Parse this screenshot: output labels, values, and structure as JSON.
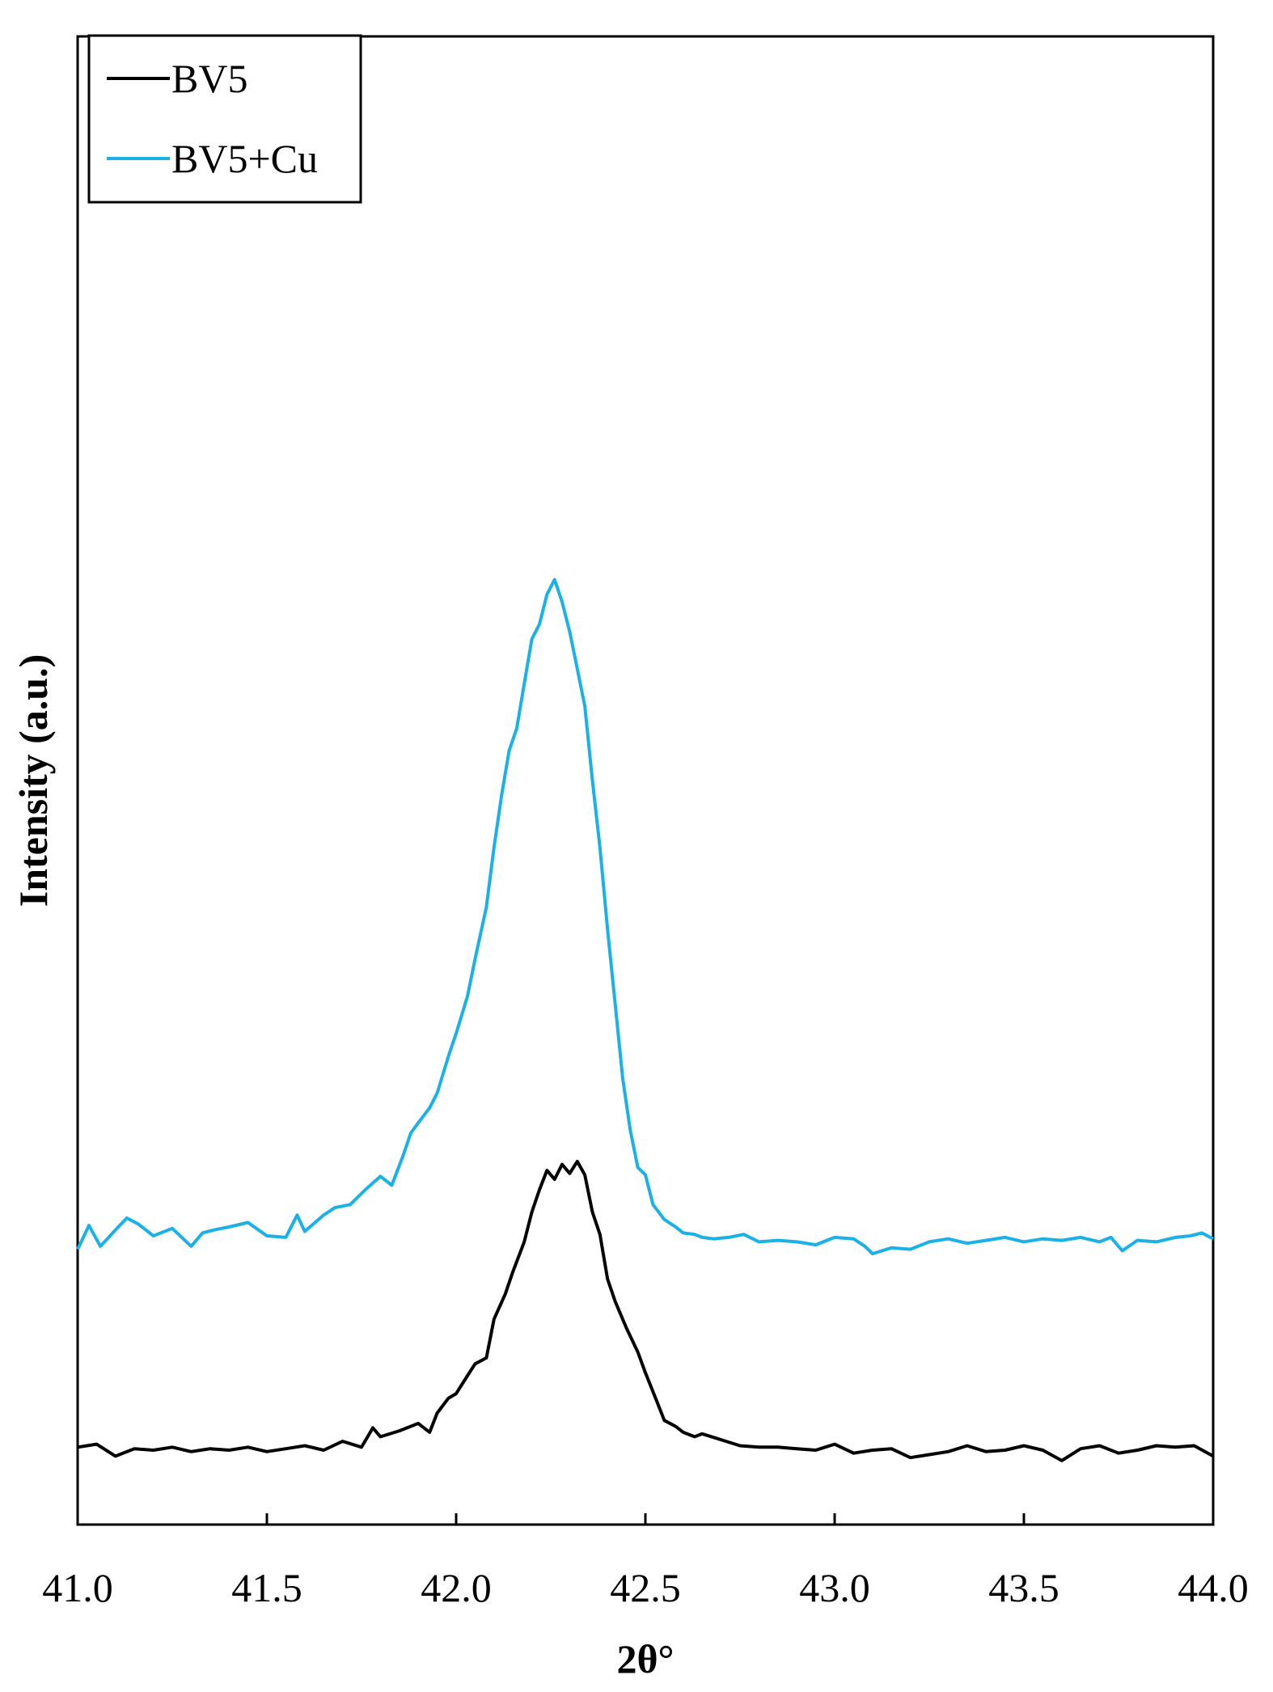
{
  "chart_data": {
    "type": "line",
    "xlabel": "2θ°",
    "ylabel": "Intensity (a.u.)",
    "xlim": [
      41.0,
      44.0
    ],
    "ylim": [
      0,
      100
    ],
    "x_ticks": [
      "41.0",
      "41.5",
      "42.0",
      "42.5",
      "43.0",
      "43.5",
      "44.0"
    ],
    "y_ticks_shown": false,
    "grid": false,
    "legend_position": "top-left",
    "series": [
      {
        "name": "BV5",
        "color": "#000000",
        "x": [
          41.0,
          41.05,
          41.1,
          41.15,
          41.2,
          41.25,
          41.3,
          41.35,
          41.4,
          41.45,
          41.5,
          41.55,
          41.6,
          41.65,
          41.7,
          41.75,
          41.78,
          41.8,
          41.85,
          41.9,
          41.93,
          41.95,
          41.98,
          42.0,
          42.03,
          42.05,
          42.08,
          42.1,
          42.13,
          42.15,
          42.18,
          42.2,
          42.22,
          42.24,
          42.26,
          42.28,
          42.3,
          42.32,
          42.34,
          42.36,
          42.38,
          42.4,
          42.42,
          42.45,
          42.48,
          42.5,
          42.53,
          42.55,
          42.58,
          42.6,
          42.63,
          42.65,
          42.7,
          42.75,
          42.8,
          42.85,
          42.9,
          42.95,
          43.0,
          43.05,
          43.1,
          43.15,
          43.2,
          43.25,
          43.3,
          43.35,
          43.4,
          43.45,
          43.5,
          43.55,
          43.6,
          43.65,
          43.7,
          43.75,
          43.8,
          43.85,
          43.9,
          43.95,
          44.0
        ],
        "y": [
          5.2,
          5.4,
          4.6,
          5.1,
          5.0,
          5.2,
          4.9,
          5.1,
          5.0,
          5.2,
          4.9,
          5.1,
          5.3,
          5.0,
          5.6,
          5.2,
          6.5,
          5.9,
          6.3,
          6.8,
          6.2,
          7.5,
          8.5,
          8.8,
          10.0,
          10.8,
          11.2,
          13.8,
          15.5,
          17.0,
          19.0,
          21.0,
          22.5,
          23.8,
          23.2,
          24.2,
          23.6,
          24.4,
          23.5,
          21.0,
          19.5,
          16.5,
          15.0,
          13.2,
          11.6,
          10.2,
          8.3,
          7.0,
          6.6,
          6.2,
          5.9,
          6.1,
          5.7,
          5.3,
          5.2,
          5.2,
          5.1,
          5.0,
          5.4,
          4.8,
          5.0,
          5.1,
          4.5,
          4.7,
          4.9,
          5.3,
          4.9,
          5.0,
          5.3,
          5.0,
          4.3,
          5.1,
          5.3,
          4.8,
          5.0,
          5.3,
          5.2,
          5.3,
          4.6
        ]
      },
      {
        "name": "BV5+Cu",
        "color": "#1ab0e8",
        "x": [
          41.0,
          41.03,
          41.06,
          41.1,
          41.13,
          41.16,
          41.2,
          41.25,
          41.3,
          41.33,
          41.36,
          41.4,
          41.45,
          41.5,
          41.55,
          41.58,
          41.6,
          41.65,
          41.68,
          41.72,
          41.76,
          41.8,
          41.83,
          41.86,
          41.88,
          41.9,
          41.93,
          41.95,
          41.98,
          42.0,
          42.03,
          42.05,
          42.08,
          42.1,
          42.12,
          42.14,
          42.16,
          42.18,
          42.2,
          42.22,
          42.24,
          42.26,
          42.28,
          42.3,
          42.32,
          42.34,
          42.36,
          42.38,
          42.4,
          42.42,
          42.44,
          42.46,
          42.48,
          42.5,
          42.52,
          42.55,
          42.58,
          42.6,
          42.63,
          42.65,
          42.68,
          42.72,
          42.76,
          42.8,
          42.85,
          42.9,
          42.95,
          43.0,
          43.05,
          43.08,
          43.1,
          43.15,
          43.2,
          43.25,
          43.3,
          43.35,
          43.4,
          43.45,
          43.5,
          43.55,
          43.6,
          43.65,
          43.7,
          43.73,
          43.76,
          43.8,
          43.85,
          43.9,
          43.94,
          43.97,
          44.0
        ],
        "y": [
          18.5,
          20.1,
          18.7,
          19.8,
          20.6,
          20.2,
          19.4,
          19.9,
          18.7,
          19.6,
          19.8,
          20.0,
          20.3,
          19.4,
          19.3,
          20.8,
          19.7,
          20.8,
          21.3,
          21.5,
          22.5,
          23.4,
          22.8,
          24.8,
          26.3,
          27.0,
          28.0,
          29.0,
          31.5,
          33.0,
          35.5,
          38.0,
          41.5,
          45.5,
          49.0,
          52.0,
          53.5,
          56.5,
          59.5,
          60.5,
          62.5,
          63.5,
          62.0,
          60.0,
          57.5,
          55.0,
          50.0,
          45.5,
          40.0,
          35.0,
          30.0,
          26.5,
          24.0,
          23.5,
          21.5,
          20.5,
          20.0,
          19.6,
          19.5,
          19.3,
          19.2,
          19.3,
          19.5,
          19.0,
          19.1,
          19.0,
          18.8,
          19.3,
          19.2,
          18.7,
          18.2,
          18.6,
          18.5,
          19.0,
          19.2,
          18.9,
          19.1,
          19.3,
          19.0,
          19.2,
          19.1,
          19.3,
          19.0,
          19.3,
          18.4,
          19.1,
          19.0,
          19.3,
          19.4,
          19.6,
          19.2
        ]
      }
    ]
  }
}
